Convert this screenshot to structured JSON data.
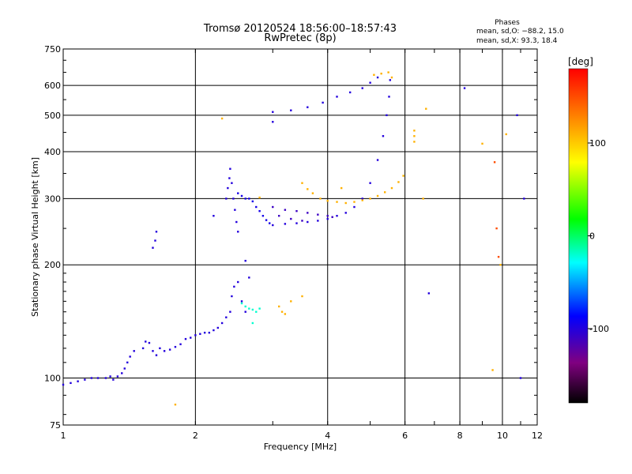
{
  "chart_data": {
    "type": "scatter",
    "title": "Tromsø 20120524 18:56:00–18:57:43",
    "subtitle": "RwPretec (8p)",
    "xlabel": "Frequency [MHz]",
    "ylabel": "Stationary phase Virtual Height [km]",
    "x_scale": "log",
    "y_scale": "log",
    "xlim": [
      1,
      12
    ],
    "ylim": [
      75,
      750
    ],
    "x_ticks": [
      1,
      2,
      4,
      6,
      8,
      10,
      12
    ],
    "x_tick_labels": [
      "1",
      "2",
      "4",
      "6",
      "8",
      "10",
      "12"
    ],
    "y_ticks": [
      75,
      100,
      200,
      300,
      400,
      500,
      600,
      750
    ],
    "y_tick_labels": [
      "75",
      "100",
      "200",
      "300",
      "400",
      "500",
      "600",
      "750"
    ],
    "grid": true,
    "phases_header": "Phases",
    "stats": [
      "mean, sd,O: −88.2, 15.0",
      "mean, sd,X:  93.3, 18.4"
    ],
    "colorbar": {
      "label": "[deg]",
      "min": -180,
      "max": 180,
      "ticks": [
        100,
        0,
        -100
      ],
      "tick_labels": [
        "100",
        "0",
        "-100"
      ],
      "colors": [
        "#ff0000",
        "#ff8000",
        "#ffff00",
        "#00ff00",
        "#00ffff",
        "#0000ff",
        "#800080",
        "#000000"
      ]
    },
    "series": [
      {
        "phase": -100,
        "points": [
          [
            1.0,
            96
          ],
          [
            1.04,
            97
          ],
          [
            1.08,
            98
          ],
          [
            1.12,
            99
          ],
          [
            1.16,
            100
          ],
          [
            1.2,
            100
          ],
          [
            1.25,
            100
          ],
          [
            1.28,
            101
          ],
          [
            1.3,
            99
          ],
          [
            1.33,
            101
          ],
          [
            1.36,
            103
          ],
          [
            1.38,
            106
          ],
          [
            1.4,
            110
          ],
          [
            1.42,
            114
          ],
          [
            1.45,
            118
          ]
        ]
      },
      {
        "phase": -100,
        "points": [
          [
            1.52,
            120
          ],
          [
            1.54,
            125
          ],
          [
            1.57,
            124
          ],
          [
            1.6,
            118
          ],
          [
            1.63,
            115
          ],
          [
            1.66,
            120
          ],
          [
            1.7,
            118
          ],
          [
            1.75,
            119
          ],
          [
            1.8,
            121
          ],
          [
            1.85,
            123
          ],
          [
            1.9,
            127
          ],
          [
            1.95,
            128
          ],
          [
            2.0,
            130
          ],
          [
            2.05,
            131
          ],
          [
            2.1,
            132
          ],
          [
            2.15,
            132
          ],
          [
            2.2,
            134
          ],
          [
            2.25,
            136
          ]
        ]
      },
      {
        "phase": -100,
        "points": [
          [
            2.3,
            140
          ],
          [
            2.35,
            145
          ],
          [
            2.4,
            150
          ],
          [
            2.42,
            165
          ],
          [
            2.45,
            175
          ],
          [
            2.5,
            180
          ],
          [
            2.55,
            160
          ],
          [
            2.6,
            150
          ]
        ]
      },
      {
        "phase": -100,
        "points": [
          [
            2.35,
            300
          ],
          [
            2.37,
            320
          ],
          [
            2.39,
            340
          ],
          [
            2.4,
            360
          ],
          [
            2.42,
            330
          ],
          [
            2.44,
            300
          ],
          [
            2.46,
            280
          ],
          [
            2.48,
            260
          ],
          [
            2.5,
            245
          ]
        ]
      },
      {
        "phase": -95,
        "points": [
          [
            2.5,
            310
          ],
          [
            2.55,
            305
          ],
          [
            2.6,
            300
          ],
          [
            2.65,
            300
          ],
          [
            2.7,
            295
          ],
          [
            2.75,
            285
          ],
          [
            2.8,
            278
          ],
          [
            2.85,
            270
          ],
          [
            2.9,
            263
          ],
          [
            2.95,
            258
          ]
        ]
      },
      {
        "phase": -100,
        "points": [
          [
            3.0,
            255
          ],
          [
            3.2,
            257
          ],
          [
            3.4,
            258
          ],
          [
            3.6,
            260
          ],
          [
            3.8,
            262
          ],
          [
            4.0,
            265
          ],
          [
            4.2,
            270
          ],
          [
            4.4,
            275
          ],
          [
            4.6,
            285
          ],
          [
            4.8,
            300
          ],
          [
            5.0,
            330
          ],
          [
            5.2,
            380
          ],
          [
            5.35,
            440
          ],
          [
            5.45,
            500
          ],
          [
            5.52,
            560
          ],
          [
            5.55,
            620
          ]
        ]
      },
      {
        "phase": -110,
        "points": [
          [
            3.0,
            285
          ],
          [
            3.2,
            280
          ],
          [
            3.4,
            278
          ],
          [
            3.6,
            275
          ],
          [
            3.8,
            272
          ],
          [
            4.0,
            270
          ],
          [
            4.1,
            268
          ],
          [
            3.1,
            270
          ],
          [
            3.3,
            265
          ],
          [
            3.5,
            262
          ]
        ]
      },
      {
        "phase": 110,
        "points": [
          [
            3.5,
            330
          ],
          [
            3.6,
            318
          ],
          [
            3.7,
            310
          ],
          [
            3.85,
            300
          ],
          [
            4.0,
            296
          ],
          [
            4.2,
            294
          ],
          [
            4.4,
            292
          ],
          [
            4.6,
            294
          ],
          [
            4.8,
            297
          ],
          [
            5.0,
            300
          ],
          [
            5.2,
            305
          ],
          [
            5.4,
            312
          ],
          [
            5.6,
            320
          ],
          [
            5.8,
            332
          ],
          [
            5.95,
            345
          ]
        ]
      },
      {
        "phase": -100,
        "points": [
          [
            3.0,
            510
          ],
          [
            3.3,
            515
          ],
          [
            3.6,
            525
          ],
          [
            3.9,
            540
          ],
          [
            4.2,
            560
          ],
          [
            4.5,
            575
          ],
          [
            4.8,
            590
          ],
          [
            5.0,
            610
          ],
          [
            5.2,
            630
          ]
        ]
      },
      {
        "phase": 110,
        "points": [
          [
            5.1,
            640
          ],
          [
            5.3,
            645
          ],
          [
            5.5,
            650
          ],
          [
            5.6,
            630
          ],
          [
            6.3,
            455
          ],
          [
            6.3,
            440
          ],
          [
            6.3,
            425
          ]
        ]
      },
      {
        "phase": 110,
        "points": [
          [
            3.1,
            155
          ],
          [
            3.15,
            150
          ],
          [
            3.2,
            148
          ],
          [
            3.3,
            160
          ],
          [
            3.5,
            165
          ],
          [
            1.8,
            85
          ],
          [
            2.8,
            302
          ],
          [
            2.3,
            490
          ],
          [
            4.3,
            320
          ]
        ]
      },
      {
        "phase": -20,
        "points": [
          [
            2.55,
            158
          ],
          [
            2.6,
            155
          ],
          [
            2.65,
            153
          ],
          [
            2.7,
            152
          ],
          [
            2.8,
            153
          ],
          [
            2.75,
            150
          ],
          [
            2.7,
            140
          ]
        ]
      },
      {
        "phase": -100,
        "points": [
          [
            1.6,
            222
          ],
          [
            1.62,
            232
          ],
          [
            1.63,
            245
          ],
          [
            2.2,
            270
          ],
          [
            2.6,
            205
          ],
          [
            2.65,
            185
          ],
          [
            6.8,
            168
          ],
          [
            8.2,
            590
          ],
          [
            10.8,
            500
          ],
          [
            11.2,
            300
          ],
          [
            11.0,
            100
          ],
          [
            3.0,
            480
          ]
        ]
      },
      {
        "phase": 150,
        "points": [
          [
            9.6,
            375
          ],
          [
            9.8,
            210
          ],
          [
            9.7,
            250
          ]
        ]
      },
      {
        "phase": 110,
        "points": [
          [
            9.5,
            105
          ],
          [
            9.9,
            200
          ],
          [
            9.0,
            420
          ],
          [
            6.6,
            300
          ],
          [
            6.7,
            520
          ],
          [
            10.2,
            445
          ]
        ]
      }
    ]
  }
}
